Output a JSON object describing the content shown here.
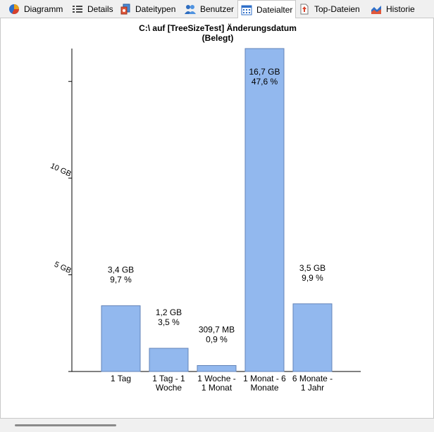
{
  "tabs": [
    {
      "id": "diagramm",
      "label": "Diagramm",
      "icon": "pie-chart-icon"
    },
    {
      "id": "details",
      "label": "Details",
      "icon": "details-list-icon"
    },
    {
      "id": "dateitypen",
      "label": "Dateitypen",
      "icon": "file-types-icon"
    },
    {
      "id": "benutzer",
      "label": "Benutzer",
      "icon": "users-icon"
    },
    {
      "id": "dateialter",
      "label": "Dateialter",
      "icon": "calendar-icon",
      "active": true
    },
    {
      "id": "top-dateien",
      "label": "Top-Dateien",
      "icon": "top-files-icon"
    },
    {
      "id": "historie",
      "label": "Historie",
      "icon": "area-chart-icon"
    }
  ],
  "chart_data": {
    "type": "bar",
    "title_line1": "C:\\  auf  [TreeSizeTest] Änderungsdatum",
    "title_line2": "(Belegt)",
    "categories": [
      [
        "1 Tag"
      ],
      [
        "1 Tag - 1",
        "Woche"
      ],
      [
        "1 Woche -",
        "1 Monat"
      ],
      [
        "1 Monat - 6",
        "Monate"
      ],
      [
        "6 Monate -",
        "1 Jahr"
      ]
    ],
    "values_gb": [
      3.4,
      1.2,
      0.3097,
      16.7,
      3.5
    ],
    "size_labels": [
      "3,4 GB",
      "1,2 GB",
      "309,7 MB",
      "16,7 GB",
      "3,5 GB"
    ],
    "percent_labels": [
      "9,7 %",
      "3,5 %",
      "0,9 %",
      "47,6 %",
      "9,9 %"
    ],
    "y_ticks": [
      {
        "value": 5,
        "label": "5 GB"
      },
      {
        "value": 10,
        "label": "10 GB"
      },
      {
        "value": 15,
        "label": ""
      }
    ],
    "ylim": [
      0,
      16.7
    ],
    "bar_color": "#92b8ee",
    "bar_border": "#6383b8"
  }
}
